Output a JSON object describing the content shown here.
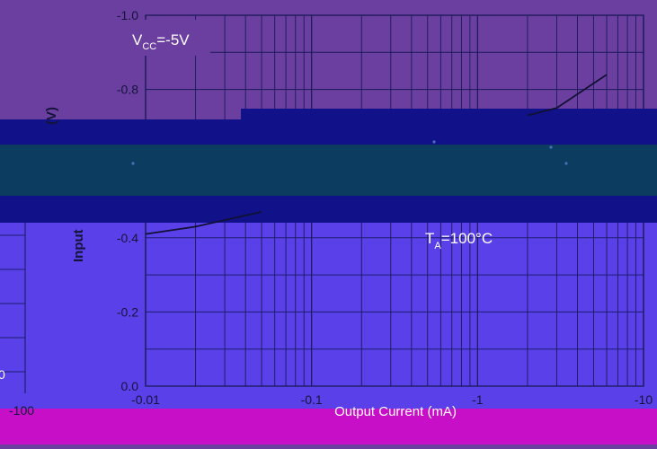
{
  "chart_data": {
    "type": "line",
    "xlabel": "Output Current (mA)",
    "ylabel": "Input",
    "ylabel_fragment_top": "(V)",
    "x_scale": "log",
    "xlim": [
      0.01,
      10
    ],
    "ylim": [
      0,
      -1
    ],
    "x_ticks": [
      "-0.01",
      "-0.1",
      "-1",
      "-10"
    ],
    "y_ticks": [
      "-1.0",
      "-0.8",
      "-0.4",
      "-0.2",
      "0.0"
    ],
    "left_panel_tick": "-100",
    "left_panel_fragment": "0",
    "annotations": {
      "vcc": {
        "base": "V",
        "sub": "CC",
        "rest": "=-5V"
      },
      "ta": {
        "base": "T",
        "sub": "A",
        "rest": "=100°C"
      }
    },
    "grid": true,
    "series": [
      {
        "x": [
          0.01,
          0.02,
          0.05,
          0.1,
          0.2,
          0.5,
          1,
          2,
          3,
          6
        ],
        "y": [
          -0.41,
          -0.43,
          -0.47,
          -0.51,
          -0.56,
          -0.63,
          -0.68,
          -0.73,
          -0.75,
          -0.84
        ]
      }
    ]
  },
  "colors": {
    "background": "#6a3fa0",
    "plot_bg_top": "#6a3fa0",
    "band_dark_blue": "#11118a",
    "band_teal": "#0c3d60",
    "plot_bg_bottom": "#5a40e8",
    "bottom_bar": "#c80fc8",
    "grid_upper": "#1a1a58",
    "grid_lower": "#1e1e70",
    "curve": "#111133",
    "text": "#ffffff",
    "text_dark": "#14143a"
  }
}
